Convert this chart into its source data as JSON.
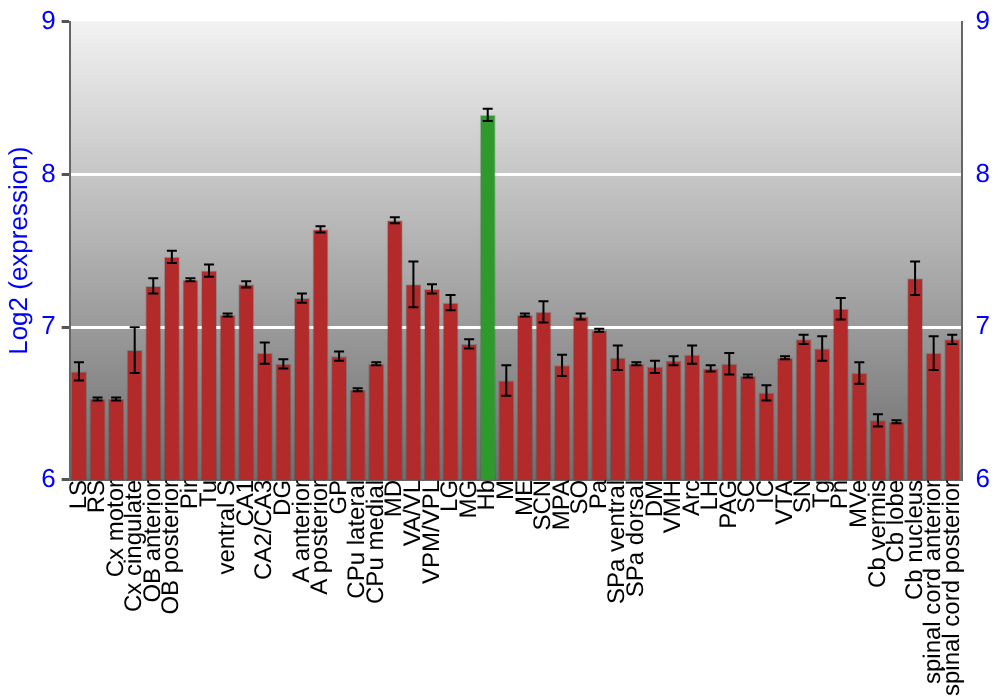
{
  "chart_data": {
    "type": "bar",
    "ylabel": "Log2 (expression)",
    "categories": [
      "LS",
      "RS",
      "Cx motor",
      "Cx cingulate",
      "OB anterior",
      "OB posterior",
      "Pir",
      "Tu",
      "ventral S",
      "CA1",
      "CA2/CA3",
      "DG",
      "A anterior",
      "A posterior",
      "GP",
      "CPu lateral",
      "CPu medial",
      "MD",
      "VA/VL",
      "VPM/VPL",
      "LG",
      "MG",
      "Hb",
      "M",
      "ME",
      "SCN",
      "MPA",
      "SO",
      "Pa",
      "SPa ventral",
      "SPa dorsal",
      "DM",
      "VMH",
      "Arc",
      "LH",
      "PAG",
      "SC",
      "IC",
      "VTA",
      "SN",
      "Tg",
      "Pn",
      "MVe",
      "Cb vermis",
      "Cb lobe",
      "Cb nucleus",
      "spinal cord anterior",
      "spinal cord posterior"
    ],
    "values": [
      6.71,
      6.53,
      6.53,
      6.85,
      7.27,
      7.46,
      7.31,
      7.37,
      7.08,
      7.28,
      6.83,
      6.76,
      7.19,
      7.64,
      6.81,
      6.59,
      6.76,
      7.7,
      7.28,
      7.25,
      7.16,
      6.89,
      8.39,
      6.65,
      7.08,
      7.1,
      6.75,
      7.07,
      6.98,
      6.8,
      6.76,
      6.74,
      6.78,
      6.82,
      6.73,
      6.76,
      6.68,
      6.57,
      6.8,
      6.92,
      6.86,
      7.12,
      6.7,
      6.39,
      6.38,
      7.32,
      6.83,
      6.92
    ],
    "errors": [
      0.06,
      0.01,
      0.01,
      0.15,
      0.05,
      0.04,
      0.01,
      0.04,
      0.01,
      0.02,
      0.07,
      0.03,
      0.03,
      0.02,
      0.03,
      0.01,
      0.01,
      0.02,
      0.15,
      0.03,
      0.05,
      0.03,
      0.04,
      0.1,
      0.01,
      0.07,
      0.07,
      0.02,
      0.01,
      0.08,
      0.01,
      0.04,
      0.03,
      0.06,
      0.02,
      0.07,
      0.01,
      0.05,
      0.01,
      0.03,
      0.08,
      0.07,
      0.07,
      0.04,
      0.01,
      0.11,
      0.11,
      0.03
    ],
    "colors": [
      "#b22a2a",
      "#b22a2a",
      "#b22a2a",
      "#b22a2a",
      "#b22a2a",
      "#b22a2a",
      "#b22a2a",
      "#b22a2a",
      "#b22a2a",
      "#b22a2a",
      "#b22a2a",
      "#b22a2a",
      "#b22a2a",
      "#b22a2a",
      "#b22a2a",
      "#b22a2a",
      "#b22a2a",
      "#b22a2a",
      "#b22a2a",
      "#b22a2a",
      "#b22a2a",
      "#b22a2a",
      "#2e9a2e",
      "#b22a2a",
      "#b22a2a",
      "#b22a2a",
      "#b22a2a",
      "#b22a2a",
      "#b22a2a",
      "#b22a2a",
      "#b22a2a",
      "#b22a2a",
      "#b22a2a",
      "#b22a2a",
      "#b22a2a",
      "#b22a2a",
      "#b22a2a",
      "#b22a2a",
      "#b22a2a",
      "#b22a2a",
      "#b22a2a",
      "#b22a2a",
      "#b22a2a",
      "#b22a2a",
      "#b22a2a",
      "#b22a2a",
      "#b22a2a",
      "#b22a2a"
    ],
    "ylim": [
      6,
      9
    ],
    "yticks": [
      6,
      7,
      8,
      9
    ],
    "y2lim": [
      6,
      9
    ],
    "y2ticks": [
      6,
      7,
      8,
      9
    ],
    "grid": "y",
    "legend": false
  }
}
